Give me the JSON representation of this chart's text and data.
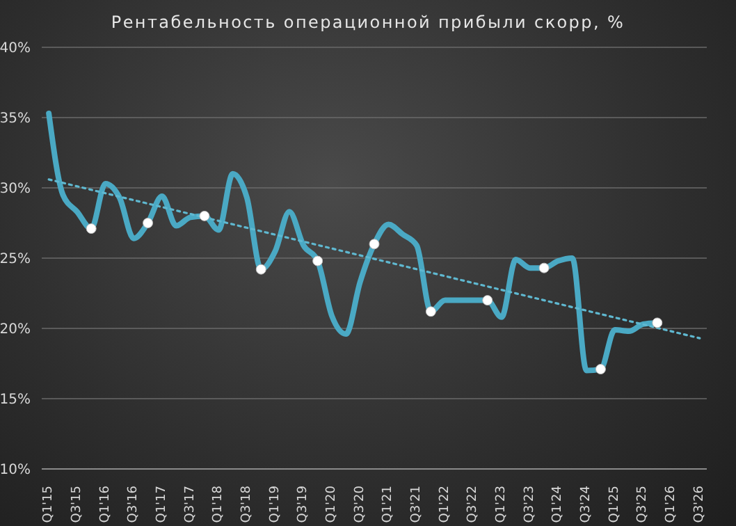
{
  "chart_data": {
    "type": "line",
    "title": "Рентабельность операционной прибыли скорр, %",
    "categories": [
      "Q1'15",
      null,
      "Q3'15",
      null,
      "Q1'16",
      null,
      "Q3'16",
      null,
      "Q1'17",
      null,
      "Q3'17",
      null,
      "Q1'18",
      null,
      "Q3'18",
      null,
      "Q1'19",
      null,
      "Q3'19",
      null,
      "Q1'20",
      null,
      "Q3'20",
      null,
      "Q1'21",
      null,
      "Q3'21",
      null,
      "Q1'22",
      null,
      "Q3'22",
      null,
      "Q1'23",
      null,
      "Q3'23",
      null,
      "Q1'24",
      null,
      "Q3'24",
      null,
      "Q1'25",
      null,
      "Q3'25",
      null,
      "Q1'26",
      null,
      "Q3'26"
    ],
    "series": [
      {
        "color": "#4aa9c4",
        "marker": "none",
        "line_style": "solid",
        "values": [
          35.3,
          29.5,
          28.3,
          27.1,
          30.3,
          29.3,
          26.4,
          27.5,
          29.4,
          27.3,
          27.9,
          28.0,
          27.0,
          31.0,
          29.3,
          24.2,
          25.5,
          28.3,
          25.9,
          24.8,
          20.9,
          19.6,
          23.3,
          26.0,
          27.4,
          26.7,
          25.9,
          21.2,
          22.0,
          22.0,
          22.0,
          22.0,
          20.8,
          24.9,
          24.3,
          24.3,
          24.8,
          25.0,
          17.0,
          17.1,
          19.9,
          19.8,
          20.3,
          20.4,
          null,
          null,
          null
        ]
      },
      {
        "type": "scatter",
        "color": "#ffffff",
        "marker": "circle",
        "values": [
          null,
          null,
          null,
          27.1,
          null,
          null,
          null,
          27.5,
          null,
          null,
          null,
          28.0,
          null,
          null,
          null,
          24.2,
          null,
          null,
          null,
          24.8,
          null,
          null,
          null,
          26.0,
          null,
          null,
          null,
          21.2,
          null,
          null,
          null,
          22.0,
          null,
          null,
          null,
          24.3,
          null,
          null,
          null,
          17.1,
          null,
          null,
          null,
          20.4,
          null,
          null,
          null
        ]
      },
      {
        "type": "line",
        "color": "#5fb8d0",
        "marker": "none",
        "line_style": "dotted",
        "values": [
          30.6,
          null,
          null,
          null,
          null,
          null,
          null,
          null,
          null,
          null,
          null,
          null,
          null,
          null,
          null,
          null,
          null,
          null,
          null,
          null,
          null,
          null,
          null,
          null,
          null,
          null,
          null,
          null,
          null,
          null,
          null,
          null,
          null,
          null,
          null,
          null,
          null,
          null,
          null,
          null,
          null,
          null,
          null,
          null,
          null,
          null,
          19.3
        ]
      }
    ],
    "ylim": [
      10,
      40
    ],
    "yticks": [
      {
        "value": 10,
        "label": "10%"
      },
      {
        "value": 15,
        "label": "15%"
      },
      {
        "value": 20,
        "label": "20%"
      },
      {
        "value": 25,
        "label": "25%"
      },
      {
        "value": 30,
        "label": "30%"
      },
      {
        "value": 35,
        "label": "35%"
      },
      {
        "value": 40,
        "label": "40%"
      }
    ],
    "grid": "y",
    "legend": false
  }
}
